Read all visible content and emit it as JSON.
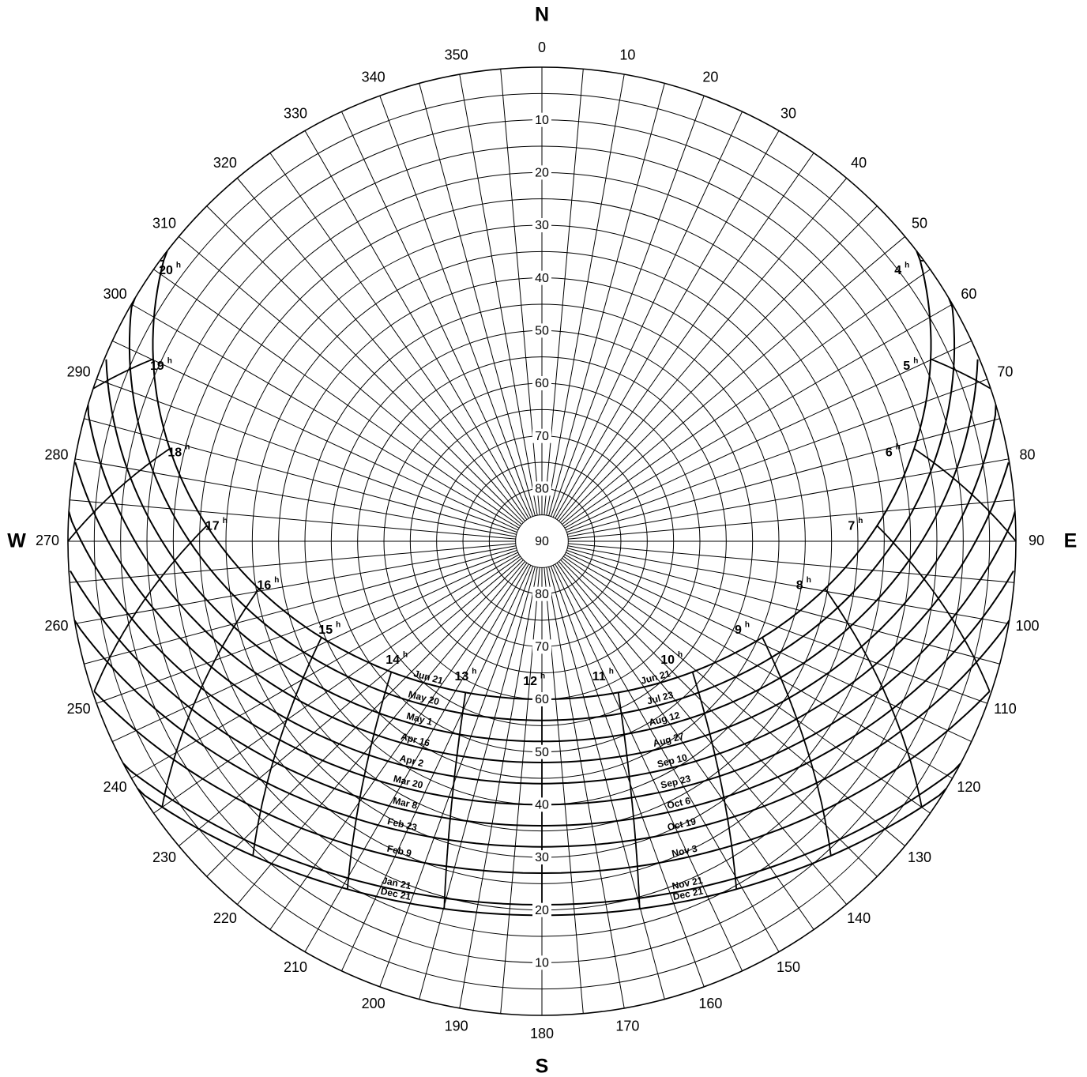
{
  "diagram": {
    "type": "sun-path polar chart",
    "colors": {
      "background": "#ffffff",
      "ink": "#000000"
    },
    "cardinals": {
      "north": "N",
      "east": "E",
      "south": "S",
      "west": "W"
    },
    "azimuth_labels": [
      "0",
      "10",
      "20",
      "30",
      "40",
      "50",
      "60",
      "70",
      "80",
      "90",
      "100",
      "110",
      "120",
      "130",
      "140",
      "150",
      "160",
      "170",
      "180",
      "190",
      "200",
      "210",
      "220",
      "230",
      "240",
      "250",
      "260",
      "270",
      "280",
      "290",
      "300",
      "310",
      "320",
      "330",
      "340",
      "350"
    ],
    "altitude_labels_north": [
      "10",
      "20",
      "30",
      "40",
      "50",
      "60",
      "70",
      "80"
    ],
    "altitude_labels_south": [
      "80",
      "70",
      "60",
      "50",
      "40",
      "30",
      "20",
      "10"
    ],
    "zenith_label": "90",
    "hour_labels": [
      {
        "t": "4",
        "sup": "h"
      },
      {
        "t": "5",
        "sup": "h"
      },
      {
        "t": "6",
        "sup": "h"
      },
      {
        "t": "7",
        "sup": "h"
      },
      {
        "t": "8",
        "sup": "h"
      },
      {
        "t": "9",
        "sup": "h"
      },
      {
        "t": "10",
        "sup": "h"
      },
      {
        "t": "11",
        "sup": "h"
      },
      {
        "t": "12",
        "sup": "h"
      },
      {
        "t": "13",
        "sup": "h"
      },
      {
        "t": "14",
        "sup": "h"
      },
      {
        "t": "15",
        "sup": "h"
      },
      {
        "t": "16",
        "sup": "h"
      },
      {
        "t": "17",
        "sup": "h"
      },
      {
        "t": "18",
        "sup": "h"
      },
      {
        "t": "19",
        "sup": "h"
      },
      {
        "t": "20",
        "sup": "h"
      }
    ],
    "dates_left": [
      "Jun 21",
      "May 20",
      "May 1",
      "Apr 16",
      "Apr 2",
      "Mar 20",
      "Mar 8",
      "Feb 23",
      "Feb 9",
      "Jan 21",
      "Dec 21"
    ],
    "dates_right": [
      "Jun 21",
      "Jul 23",
      "Aug 12",
      "Aug 27",
      "Sep 10",
      "Sep 23",
      "Oct 6",
      "Oct 19",
      "Nov 3",
      "Nov 21",
      "Dec 21"
    ],
    "sun_arcs": [
      {
        "southern_noon_altitude_deg": 60
      },
      {
        "southern_noon_altitude_deg": 56
      },
      {
        "southern_noon_altitude_deg": 52
      },
      {
        "southern_noon_altitude_deg": 48
      },
      {
        "southern_noon_altitude_deg": 44
      },
      {
        "southern_noon_altitude_deg": 40
      },
      {
        "southern_noon_altitude_deg": 36
      },
      {
        "southern_noon_altitude_deg": 32
      },
      {
        "southern_noon_altitude_deg": 27
      },
      {
        "southern_noon_altitude_deg": 21
      },
      {
        "southern_noon_altitude_deg": 19
      }
    ]
  }
}
